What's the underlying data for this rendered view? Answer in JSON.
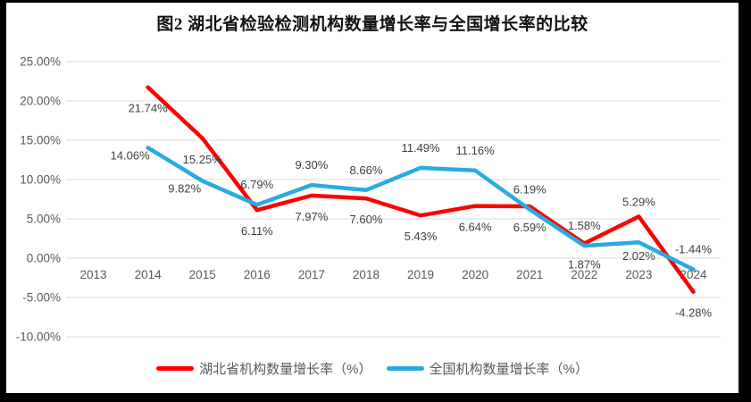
{
  "chart_data": {
    "type": "line",
    "title": "图2 湖北省检验检测机构数量增长率与全国增长率的比较",
    "categories": [
      "2013",
      "2014",
      "2015",
      "2016",
      "2017",
      "2018",
      "2019",
      "2020",
      "2021",
      "2022",
      "2023",
      "2024"
    ],
    "y_tick_labels": [
      "25.00%",
      "20.00%",
      "15.00%",
      "10.00%",
      "5.00%",
      "0.00%",
      "-5.00%",
      "-10.00%"
    ],
    "ylim": [
      -10,
      25
    ],
    "y_tick_step": 5,
    "grid": true,
    "legend_position": "bottom",
    "series": [
      {
        "name": "湖北省机构数量增长率（%）",
        "color": "#FF0000",
        "values": [
          null,
          21.74,
          15.25,
          6.11,
          7.97,
          7.6,
          5.43,
          6.64,
          6.59,
          1.87,
          5.29,
          -4.28
        ],
        "labels": [
          null,
          "21.74%",
          "15.25%",
          "6.11%",
          "7.97%",
          "7.60%",
          "5.43%",
          "6.64%",
          "6.59%",
          "1.87%",
          "5.29%",
          "-4.28%"
        ],
        "label_pos": [
          null,
          "below",
          "below",
          "below",
          "below",
          "below",
          "below",
          "below",
          "below",
          "below",
          "above-near",
          "below"
        ]
      },
      {
        "name": "全国机构数量增长率（%）",
        "color": "#29ABE2",
        "values": [
          null,
          14.06,
          9.82,
          6.79,
          9.3,
          8.66,
          11.49,
          11.16,
          6.19,
          1.58,
          2.02,
          -1.44
        ],
        "labels": [
          null,
          "14.06%",
          "9.82%",
          "6.79%",
          "9.30%",
          "8.66%",
          "11.49%",
          "11.16%",
          "6.19%",
          "1.58%",
          "2.02%",
          "-1.44%"
        ],
        "label_pos": [
          null,
          "below-left",
          "below-left",
          "above",
          "above",
          "above",
          "above",
          "above",
          "above",
          "above",
          "below-near",
          "above"
        ]
      }
    ],
    "colors": {
      "grid": "#D9D9D9",
      "axis_text": "#595959",
      "data_label_text": "#404040",
      "frame": "#000000",
      "background": "#FFFFFF"
    }
  }
}
